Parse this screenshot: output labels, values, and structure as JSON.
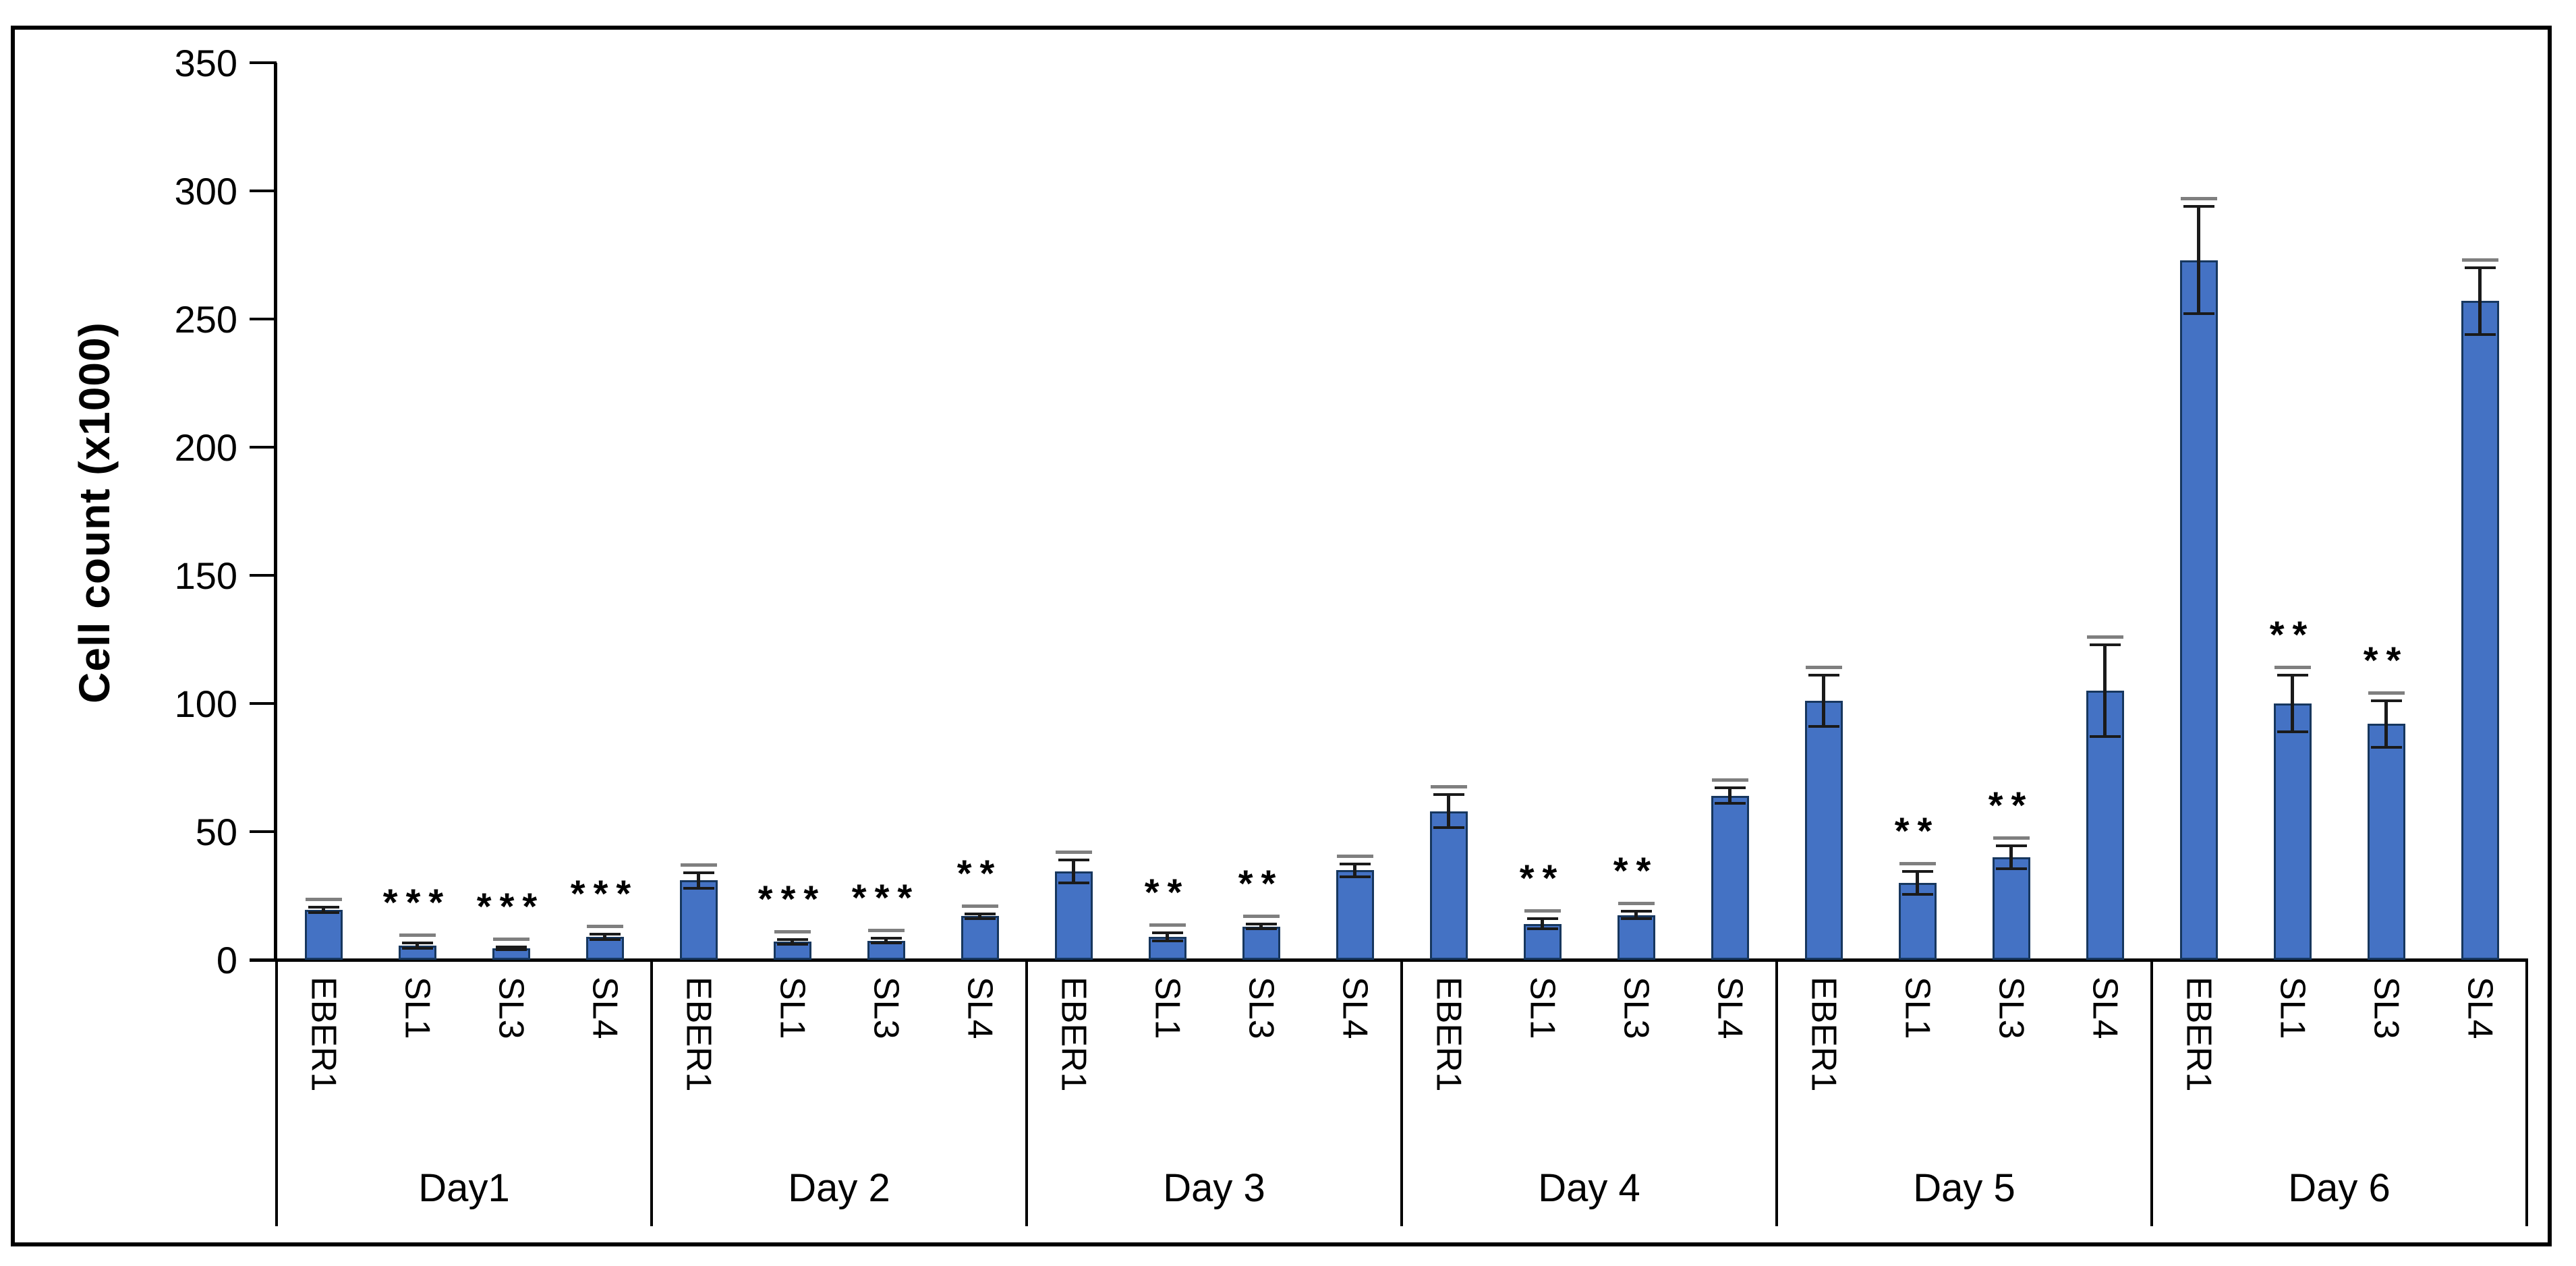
{
  "chart_data": {
    "type": "bar",
    "title": "",
    "xlabel": "",
    "ylabel": "Cell count (x1000)",
    "ylim": [
      0,
      350
    ],
    "yticks": [
      0,
      50,
      100,
      150,
      200,
      250,
      300,
      350
    ],
    "grid": false,
    "legend": "none",
    "bar_color": "#4472C4",
    "bar_border_color": "#17375E",
    "error_bar_color": "#1a1a1a",
    "series_labels": [
      "EBER1",
      "SL1",
      "SL3",
      "SL4"
    ],
    "groups": [
      {
        "label": "Day1",
        "bars": [
          {
            "name": "EBER1",
            "value": 19.5,
            "error": 1,
            "sig": ""
          },
          {
            "name": "SL1",
            "value": 5.5,
            "error": 1,
            "sig": "***"
          },
          {
            "name": "SL3",
            "value": 4.5,
            "error": 0.5,
            "sig": "***"
          },
          {
            "name": "SL4",
            "value": 9,
            "error": 1,
            "sig": "***"
          }
        ]
      },
      {
        "label": "Day 2",
        "bars": [
          {
            "name": "EBER1",
            "value": 31,
            "error": 3,
            "sig": ""
          },
          {
            "name": "SL1",
            "value": 7,
            "error": 1,
            "sig": "***"
          },
          {
            "name": "SL3",
            "value": 7.5,
            "error": 1,
            "sig": "***"
          },
          {
            "name": "SL4",
            "value": 17,
            "error": 1,
            "sig": "**"
          }
        ]
      },
      {
        "label": "Day 3",
        "bars": [
          {
            "name": "EBER1",
            "value": 34.5,
            "error": 4.5,
            "sig": ""
          },
          {
            "name": "SL1",
            "value": 9,
            "error": 1.5,
            "sig": "**"
          },
          {
            "name": "SL3",
            "value": 13,
            "error": 1,
            "sig": "**"
          },
          {
            "name": "SL4",
            "value": 35,
            "error": 2.5,
            "sig": ""
          }
        ]
      },
      {
        "label": "Day 4",
        "bars": [
          {
            "name": "EBER1",
            "value": 58,
            "error": 6.5,
            "sig": ""
          },
          {
            "name": "SL1",
            "value": 14,
            "error": 2,
            "sig": "**"
          },
          {
            "name": "SL3",
            "value": 17.5,
            "error": 1.5,
            "sig": "**"
          },
          {
            "name": "SL4",
            "value": 64,
            "error": 3,
            "sig": ""
          }
        ]
      },
      {
        "label": "Day 5",
        "bars": [
          {
            "name": "EBER1",
            "value": 101,
            "error": 10,
            "sig": ""
          },
          {
            "name": "SL1",
            "value": 30,
            "error": 4.5,
            "sig": "**"
          },
          {
            "name": "SL3",
            "value": 40,
            "error": 4.5,
            "sig": "**"
          },
          {
            "name": "SL4",
            "value": 105,
            "error": 18,
            "sig": ""
          }
        ]
      },
      {
        "label": "Day 6",
        "bars": [
          {
            "name": "EBER1",
            "value": 273,
            "error": 21,
            "sig": ""
          },
          {
            "name": "SL1",
            "value": 100,
            "error": 11,
            "sig": "**"
          },
          {
            "name": "SL3",
            "value": 92,
            "error": 9,
            "sig": "**"
          },
          {
            "name": "SL4",
            "value": 257,
            "error": 13,
            "sig": ""
          }
        ]
      }
    ]
  }
}
